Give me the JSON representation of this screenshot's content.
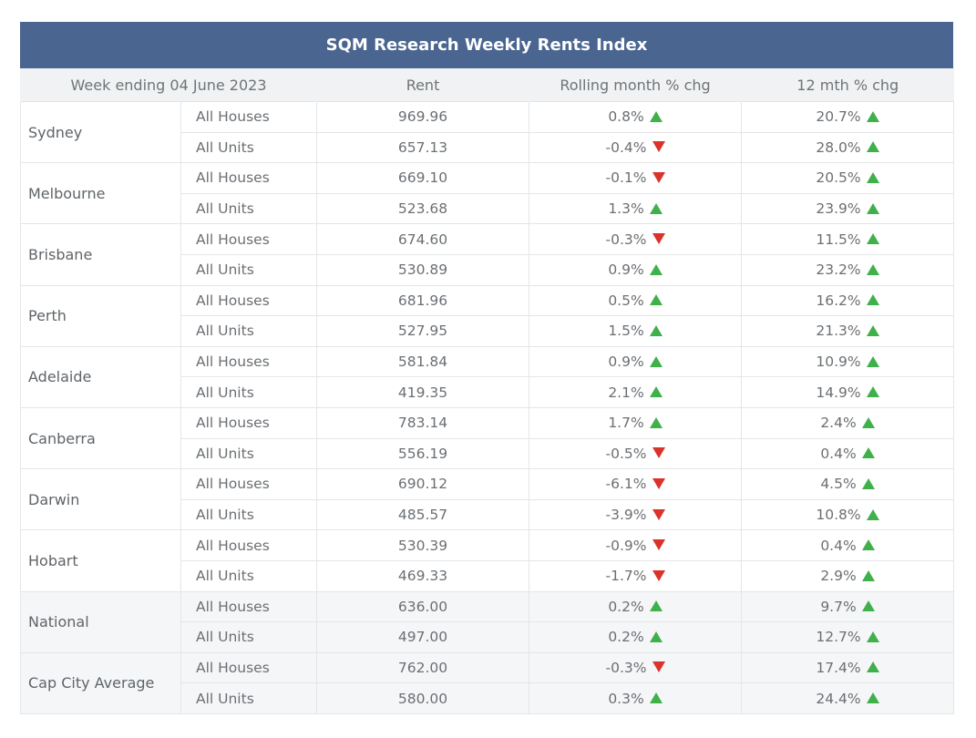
{
  "chart_data": {
    "type": "table",
    "title": "SQM Research Weekly Rents Index",
    "columns": [
      "Week ending 04 June 2023",
      "Rent",
      "Rolling month % chg",
      "12 mth % chg"
    ],
    "rows": [
      {
        "city": "Sydney",
        "entries": [
          {
            "type": "All Houses",
            "rent": "969.96",
            "month": "0.8%",
            "month_dir": "up",
            "year": "20.7%",
            "year_dir": "up"
          },
          {
            "type": "All Units",
            "rent": "657.13",
            "month": "-0.4%",
            "month_dir": "down",
            "year": "28.0%",
            "year_dir": "up"
          }
        ]
      },
      {
        "city": "Melbourne",
        "entries": [
          {
            "type": "All Houses",
            "rent": "669.10",
            "month": "-0.1%",
            "month_dir": "down",
            "year": "20.5%",
            "year_dir": "up"
          },
          {
            "type": "All Units",
            "rent": "523.68",
            "month": "1.3%",
            "month_dir": "up",
            "year": "23.9%",
            "year_dir": "up"
          }
        ]
      },
      {
        "city": "Brisbane",
        "entries": [
          {
            "type": "All Houses",
            "rent": "674.60",
            "month": "-0.3%",
            "month_dir": "down",
            "year": "11.5%",
            "year_dir": "up"
          },
          {
            "type": "All Units",
            "rent": "530.89",
            "month": "0.9%",
            "month_dir": "up",
            "year": "23.2%",
            "year_dir": "up"
          }
        ]
      },
      {
        "city": "Perth",
        "entries": [
          {
            "type": "All Houses",
            "rent": "681.96",
            "month": "0.5%",
            "month_dir": "up",
            "year": "16.2%",
            "year_dir": "up"
          },
          {
            "type": "All Units",
            "rent": "527.95",
            "month": "1.5%",
            "month_dir": "up",
            "year": "21.3%",
            "year_dir": "up"
          }
        ]
      },
      {
        "city": "Adelaide",
        "entries": [
          {
            "type": "All Houses",
            "rent": "581.84",
            "month": "0.9%",
            "month_dir": "up",
            "year": "10.9%",
            "year_dir": "up"
          },
          {
            "type": "All Units",
            "rent": "419.35",
            "month": "2.1%",
            "month_dir": "up",
            "year": "14.9%",
            "year_dir": "up"
          }
        ]
      },
      {
        "city": "Canberra",
        "entries": [
          {
            "type": "All Houses",
            "rent": "783.14",
            "month": "1.7%",
            "month_dir": "up",
            "year": "2.4%",
            "year_dir": "up"
          },
          {
            "type": "All Units",
            "rent": "556.19",
            "month": "-0.5%",
            "month_dir": "down",
            "year": "0.4%",
            "year_dir": "up"
          }
        ]
      },
      {
        "city": "Darwin",
        "entries": [
          {
            "type": "All Houses",
            "rent": "690.12",
            "month": "-6.1%",
            "month_dir": "down",
            "year": "4.5%",
            "year_dir": "up"
          },
          {
            "type": "All Units",
            "rent": "485.57",
            "month": "-3.9%",
            "month_dir": "down",
            "year": "10.8%",
            "year_dir": "up"
          }
        ]
      },
      {
        "city": "Hobart",
        "entries": [
          {
            "type": "All Houses",
            "rent": "530.39",
            "month": "-0.9%",
            "month_dir": "down",
            "year": "0.4%",
            "year_dir": "up"
          },
          {
            "type": "All Units",
            "rent": "469.33",
            "month": "-1.7%",
            "month_dir": "down",
            "year": "2.9%",
            "year_dir": "up"
          }
        ]
      },
      {
        "city": "National",
        "shaded": true,
        "entries": [
          {
            "type": "All Houses",
            "rent": "636.00",
            "month": "0.2%",
            "month_dir": "up",
            "year": "9.7%",
            "year_dir": "up"
          },
          {
            "type": "All Units",
            "rent": "497.00",
            "month": "0.2%",
            "month_dir": "up",
            "year": "12.7%",
            "year_dir": "up"
          }
        ]
      },
      {
        "city": "Cap City Average",
        "shaded": true,
        "entries": [
          {
            "type": "All Houses",
            "rent": "762.00",
            "month": "-0.3%",
            "month_dir": "down",
            "year": "17.4%",
            "year_dir": "up"
          },
          {
            "type": "All Units",
            "rent": "580.00",
            "month": "0.3%",
            "month_dir": "up",
            "year": "24.4%",
            "year_dir": "up"
          }
        ]
      }
    ]
  },
  "colors": {
    "header_bar": "#4a6590",
    "up_arrow": "#3fb04a",
    "down_arrow": "#d9332a"
  },
  "icons": {
    "up": "triangle-up-icon",
    "down": "triangle-down-icon"
  }
}
